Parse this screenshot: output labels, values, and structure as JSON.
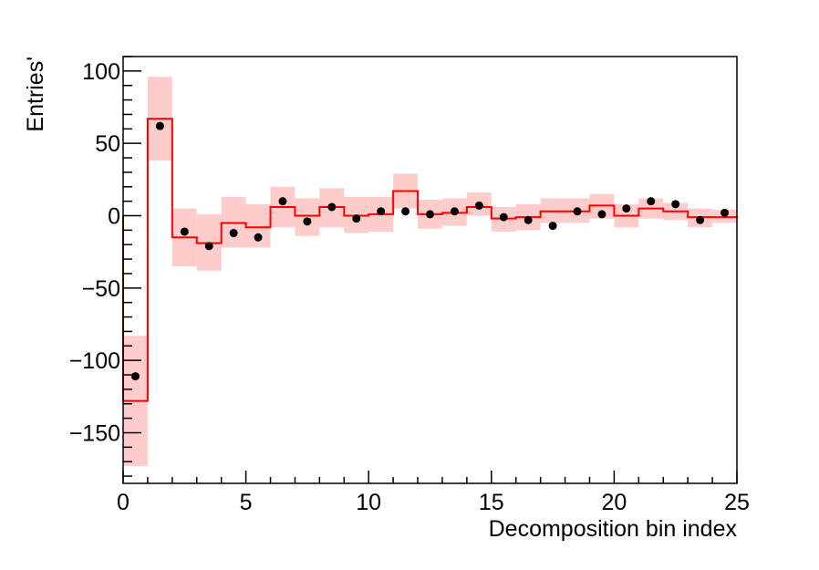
{
  "chart_data": {
    "type": "step",
    "title": "",
    "xlabel": "Decomposition bin index",
    "ylabel": "Entries'",
    "xlim": [
      0,
      25
    ],
    "ylim": [
      -185,
      110
    ],
    "x_ticks": [
      0,
      5,
      10,
      15,
      20,
      25
    ],
    "y_ticks": [
      -150,
      -100,
      -50,
      0,
      50,
      100
    ],
    "x_tick_labels": [
      "0",
      "5",
      "10",
      "15",
      "20",
      "25"
    ],
    "y_tick_labels": [
      "−150",
      "−100",
      "−50",
      "0",
      "50",
      "100"
    ],
    "grid": false,
    "legend": false,
    "bin_edges": [
      0,
      1,
      2,
      3,
      4,
      5,
      6,
      7,
      8,
      9,
      10,
      11,
      12,
      13,
      14,
      15,
      16,
      17,
      18,
      19,
      20,
      21,
      22,
      23,
      24,
      25
    ],
    "series": [
      {
        "kind": "histogram",
        "color": "#ff0000",
        "values": [
          -128,
          67,
          -15,
          -19,
          -5,
          -8,
          6,
          0,
          6,
          0,
          1,
          17,
          1,
          2,
          6,
          -2,
          -1,
          3,
          3,
          7,
          0,
          5,
          3,
          -1,
          -1
        ]
      },
      {
        "kind": "error_band",
        "color": "#ffcccc",
        "low": [
          -173,
          38,
          -35,
          -38,
          -22,
          -22,
          -8,
          -14,
          -8,
          -12,
          -11,
          5,
          -9,
          -7,
          0,
          -11,
          -10,
          -5,
          -5,
          -2,
          -8,
          -2,
          -3,
          -8,
          -5
        ],
        "high": [
          -83,
          96,
          5,
          1,
          13,
          8,
          20,
          12,
          19,
          13,
          13,
          29,
          11,
          12,
          16,
          6,
          8,
          12,
          12,
          15,
          8,
          12,
          9,
          5,
          4
        ]
      },
      {
        "kind": "points",
        "color": "#000000",
        "x": [
          0.5,
          1.5,
          2.5,
          3.5,
          4.5,
          5.5,
          6.5,
          7.5,
          8.5,
          9.5,
          10.5,
          11.5,
          12.5,
          13.5,
          14.5,
          15.5,
          16.5,
          17.5,
          18.5,
          19.5,
          20.5,
          21.5,
          22.5,
          23.5,
          24.5
        ],
        "y": [
          -111,
          62,
          -11,
          -21,
          -12,
          -15,
          10,
          -4,
          6,
          -2,
          3,
          3,
          1,
          3,
          7,
          -1,
          -3,
          -7,
          3,
          1,
          5,
          10,
          8,
          -3,
          2
        ]
      }
    ]
  }
}
